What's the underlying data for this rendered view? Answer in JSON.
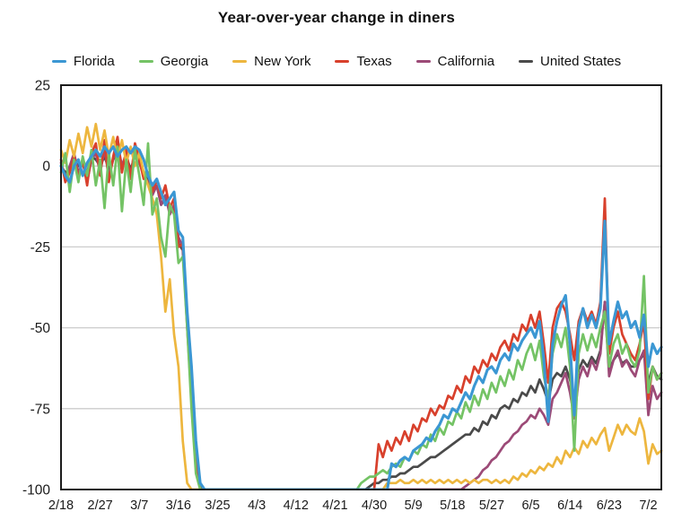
{
  "title": "Year-over-year change in diners",
  "colors": {
    "background": "#ffffff",
    "grid": "#cccccc",
    "axis": "#1c1c1c",
    "text": "#1a1a1a"
  },
  "chart_data": {
    "type": "line",
    "title": "Year-over-year change in diners",
    "xlabel": "",
    "ylabel": "",
    "ylim": [
      -100,
      25
    ],
    "y_tick_labels": [
      "25",
      "0",
      "-25",
      "-50",
      "-75",
      "-100"
    ],
    "y_tick_values": [
      25,
      0,
      -25,
      -50,
      -75,
      -100
    ],
    "y_gridlines": [
      0,
      -25,
      -50,
      -75
    ],
    "grid": "horizontal only",
    "legend_position": "top",
    "x_start_date": "2/18",
    "x_tick_interval_days": 9,
    "x_tick_labels": [
      "2/18",
      "2/27",
      "3/7",
      "3/16",
      "3/25",
      "4/3",
      "4/12",
      "4/21",
      "4/30",
      "5/9",
      "5/18",
      "5/27",
      "6/5",
      "6/14",
      "6/23",
      "7/2"
    ],
    "series": [
      {
        "name": "Florida",
        "color": "#3b97d3",
        "values": [
          0,
          -3,
          -5,
          0,
          2,
          -3,
          1,
          3,
          5,
          3,
          6,
          4,
          6,
          3,
          5,
          6,
          4,
          6,
          5,
          2,
          -3,
          -6,
          -4,
          -8,
          -12,
          -10,
          -8,
          -20,
          -22,
          -45,
          -62,
          -85,
          -98,
          -100,
          -100,
          -100,
          -100,
          -100,
          -100,
          -100,
          -100,
          -100,
          -100,
          -100,
          -100,
          -100,
          -100,
          -100,
          -100,
          -100,
          -100,
          -100,
          -100,
          -100,
          -100,
          -100,
          -100,
          -100,
          -100,
          -100,
          -100,
          -100,
          -100,
          -100,
          -100,
          -100,
          -100,
          -100,
          -100,
          -100,
          -100,
          -100,
          -100,
          -100,
          -100,
          -100,
          -92,
          -93,
          -91,
          -90,
          -91,
          -88,
          -87,
          -86,
          -84,
          -85,
          -82,
          -80,
          -77,
          -78,
          -75,
          -76,
          -73,
          -70,
          -72,
          -68,
          -65,
          -67,
          -63,
          -62,
          -64,
          -60,
          -58,
          -60,
          -55,
          -57,
          -54,
          -52,
          -50,
          -53,
          -48,
          -60,
          -79,
          -55,
          -48,
          -43,
          -40,
          -55,
          -77,
          -50,
          -44,
          -50,
          -46,
          -50,
          -44,
          -17,
          -55,
          -48,
          -42,
          -47,
          -45,
          -50,
          -48,
          -53,
          -46,
          -62,
          -55,
          -58,
          -56
        ]
      },
      {
        "name": "Georgia",
        "color": "#74c365",
        "values": [
          -2,
          4,
          -8,
          2,
          -5,
          3,
          -3,
          5,
          -6,
          2,
          -13,
          4,
          -6,
          6,
          -14,
          2,
          -8,
          5,
          -3,
          -12,
          7,
          -15,
          -10,
          -22,
          -28,
          -12,
          -15,
          -30,
          -28,
          -50,
          -75,
          -95,
          -100,
          -100,
          -100,
          -100,
          -100,
          -100,
          -100,
          -100,
          -100,
          -100,
          -100,
          -100,
          -100,
          -100,
          -100,
          -100,
          -100,
          -100,
          -100,
          -100,
          -100,
          -100,
          -100,
          -100,
          -100,
          -100,
          -100,
          -100,
          -100,
          -100,
          -100,
          -100,
          -100,
          -100,
          -100,
          -100,
          -100,
          -98,
          -97,
          -96,
          -96,
          -95,
          -94,
          -95,
          -93,
          -92,
          -93,
          -90,
          -91,
          -88,
          -89,
          -86,
          -87,
          -83,
          -85,
          -81,
          -83,
          -79,
          -80,
          -76,
          -78,
          -73,
          -76,
          -71,
          -74,
          -69,
          -72,
          -67,
          -70,
          -65,
          -68,
          -63,
          -66,
          -60,
          -63,
          -58,
          -55,
          -60,
          -54,
          -65,
          -72,
          -58,
          -52,
          -56,
          -50,
          -62,
          -88,
          -58,
          -52,
          -57,
          -52,
          -56,
          -50,
          -45,
          -62,
          -55,
          -52,
          -58,
          -55,
          -60,
          -62,
          -57,
          -34,
          -70,
          -62,
          -66,
          -64
        ]
      },
      {
        "name": "New York",
        "color": "#edb63e",
        "values": [
          5,
          1,
          8,
          3,
          10,
          4,
          12,
          6,
          13,
          5,
          11,
          3,
          9,
          2,
          8,
          1,
          6,
          0,
          4,
          -2,
          -6,
          -10,
          -15,
          -28,
          -45,
          -35,
          -52,
          -62,
          -85,
          -98,
          -100,
          -100,
          -100,
          -100,
          -100,
          -100,
          -100,
          -100,
          -100,
          -100,
          -100,
          -100,
          -100,
          -100,
          -100,
          -100,
          -100,
          -100,
          -100,
          -100,
          -100,
          -100,
          -100,
          -100,
          -100,
          -100,
          -100,
          -100,
          -100,
          -100,
          -100,
          -100,
          -100,
          -100,
          -100,
          -100,
          -100,
          -100,
          -100,
          -100,
          -100,
          -100,
          -100,
          -100,
          -100,
          -98,
          -98,
          -98,
          -97,
          -98,
          -98,
          -97,
          -98,
          -97,
          -98,
          -97,
          -98,
          -97,
          -98,
          -97,
          -98,
          -97,
          -98,
          -97,
          -98,
          -97,
          -98,
          -97,
          -97,
          -98,
          -97,
          -98,
          -97,
          -98,
          -96,
          -97,
          -95,
          -96,
          -94,
          -95,
          -93,
          -94,
          -92,
          -93,
          -90,
          -92,
          -88,
          -90,
          -87,
          -89,
          -85,
          -87,
          -84,
          -86,
          -83,
          -81,
          -88,
          -84,
          -80,
          -83,
          -80,
          -82,
          -83,
          -78,
          -82,
          -92,
          -86,
          -89,
          -88
        ]
      },
      {
        "name": "Texas",
        "color": "#d8402c",
        "values": [
          2,
          -5,
          -2,
          3,
          -4,
          2,
          -6,
          4,
          7,
          -3,
          8,
          -5,
          3,
          9,
          -2,
          5,
          -4,
          7,
          2,
          -4,
          -2,
          -8,
          -4,
          -10,
          -6,
          -13,
          -10,
          -25,
          -24,
          -48,
          -70,
          -90,
          -100,
          -100,
          -100,
          -100,
          -100,
          -100,
          -100,
          -100,
          -100,
          -100,
          -100,
          -100,
          -100,
          -100,
          -100,
          -100,
          -100,
          -100,
          -100,
          -100,
          -100,
          -100,
          -100,
          -100,
          -100,
          -100,
          -100,
          -100,
          -100,
          -100,
          -100,
          -100,
          -100,
          -100,
          -100,
          -100,
          -100,
          -100,
          -100,
          -100,
          -100,
          -86,
          -90,
          -85,
          -88,
          -84,
          -86,
          -82,
          -85,
          -80,
          -82,
          -78,
          -79,
          -75,
          -77,
          -74,
          -75,
          -71,
          -72,
          -68,
          -70,
          -65,
          -67,
          -62,
          -64,
          -60,
          -62,
          -58,
          -60,
          -56,
          -54,
          -57,
          -52,
          -54,
          -49,
          -51,
          -46,
          -50,
          -45,
          -55,
          -67,
          -50,
          -44,
          -42,
          -45,
          -52,
          -60,
          -48,
          -44,
          -48,
          -45,
          -49,
          -42,
          -10,
          -58,
          -50,
          -45,
          -52,
          -55,
          -58,
          -60,
          -55,
          -48,
          -72,
          -62,
          -66,
          -64
        ]
      },
      {
        "name": "California",
        "color": "#9c4a77",
        "values": [
          1,
          -4,
          0,
          4,
          -2,
          1,
          -5,
          2,
          4,
          -2,
          5,
          -3,
          2,
          7,
          0,
          4,
          -3,
          5,
          1,
          -3,
          -5,
          -9,
          -6,
          -12,
          -9,
          -15,
          -12,
          -22,
          -25,
          -50,
          -72,
          -92,
          -100,
          -100,
          -100,
          -100,
          -100,
          -100,
          -100,
          -100,
          -100,
          -100,
          -100,
          -100,
          -100,
          -100,
          -100,
          -100,
          -100,
          -100,
          -100,
          -100,
          -100,
          -100,
          -100,
          -100,
          -100,
          -100,
          -100,
          -100,
          -100,
          -100,
          -100,
          -100,
          -100,
          -100,
          -100,
          -100,
          -100,
          -100,
          -100,
          -100,
          -100,
          -100,
          -100,
          -100,
          -100,
          -100,
          -100,
          -100,
          -100,
          -100,
          -100,
          -100,
          -100,
          -100,
          -100,
          -100,
          -100,
          -100,
          -100,
          -100,
          -100,
          -99,
          -98,
          -97,
          -96,
          -94,
          -93,
          -91,
          -90,
          -88,
          -86,
          -85,
          -83,
          -82,
          -80,
          -79,
          -77,
          -78,
          -75,
          -77,
          -80,
          -72,
          -70,
          -67,
          -64,
          -70,
          -78,
          -66,
          -62,
          -65,
          -60,
          -63,
          -58,
          -42,
          -65,
          -60,
          -57,
          -62,
          -60,
          -63,
          -65,
          -60,
          -57,
          -77,
          -68,
          -72,
          -70
        ]
      },
      {
        "name": "United States",
        "color": "#4a4a4a",
        "values": [
          0,
          -2,
          -1,
          2,
          0,
          1,
          -2,
          3,
          2,
          0,
          3,
          -1,
          2,
          4,
          0,
          3,
          -1,
          3,
          1,
          -2,
          -4,
          -7,
          -6,
          -12,
          -10,
          -14,
          -13,
          -24,
          -26,
          -48,
          -70,
          -90,
          -99,
          -100,
          -100,
          -100,
          -100,
          -100,
          -100,
          -100,
          -100,
          -100,
          -100,
          -100,
          -100,
          -100,
          -100,
          -100,
          -100,
          -100,
          -100,
          -100,
          -100,
          -100,
          -100,
          -100,
          -100,
          -100,
          -100,
          -100,
          -100,
          -100,
          -100,
          -100,
          -100,
          -100,
          -100,
          -100,
          -100,
          -100,
          -100,
          -99,
          -98,
          -98,
          -97,
          -97,
          -96,
          -96,
          -95,
          -95,
          -94,
          -93,
          -93,
          -92,
          -91,
          -90,
          -90,
          -89,
          -88,
          -87,
          -86,
          -85,
          -84,
          -83,
          -83,
          -81,
          -82,
          -79,
          -80,
          -77,
          -78,
          -75,
          -74,
          -75,
          -72,
          -73,
          -70,
          -71,
          -68,
          -70,
          -66,
          -69,
          -73,
          -66,
          -64,
          -65,
          -62,
          -66,
          -72,
          -63,
          -60,
          -62,
          -59,
          -61,
          -57,
          -42,
          -63,
          -60,
          -58,
          -61,
          -60,
          -62,
          -62,
          -60,
          -58,
          -67,
          -62,
          -65,
          -66
        ]
      }
    ]
  }
}
